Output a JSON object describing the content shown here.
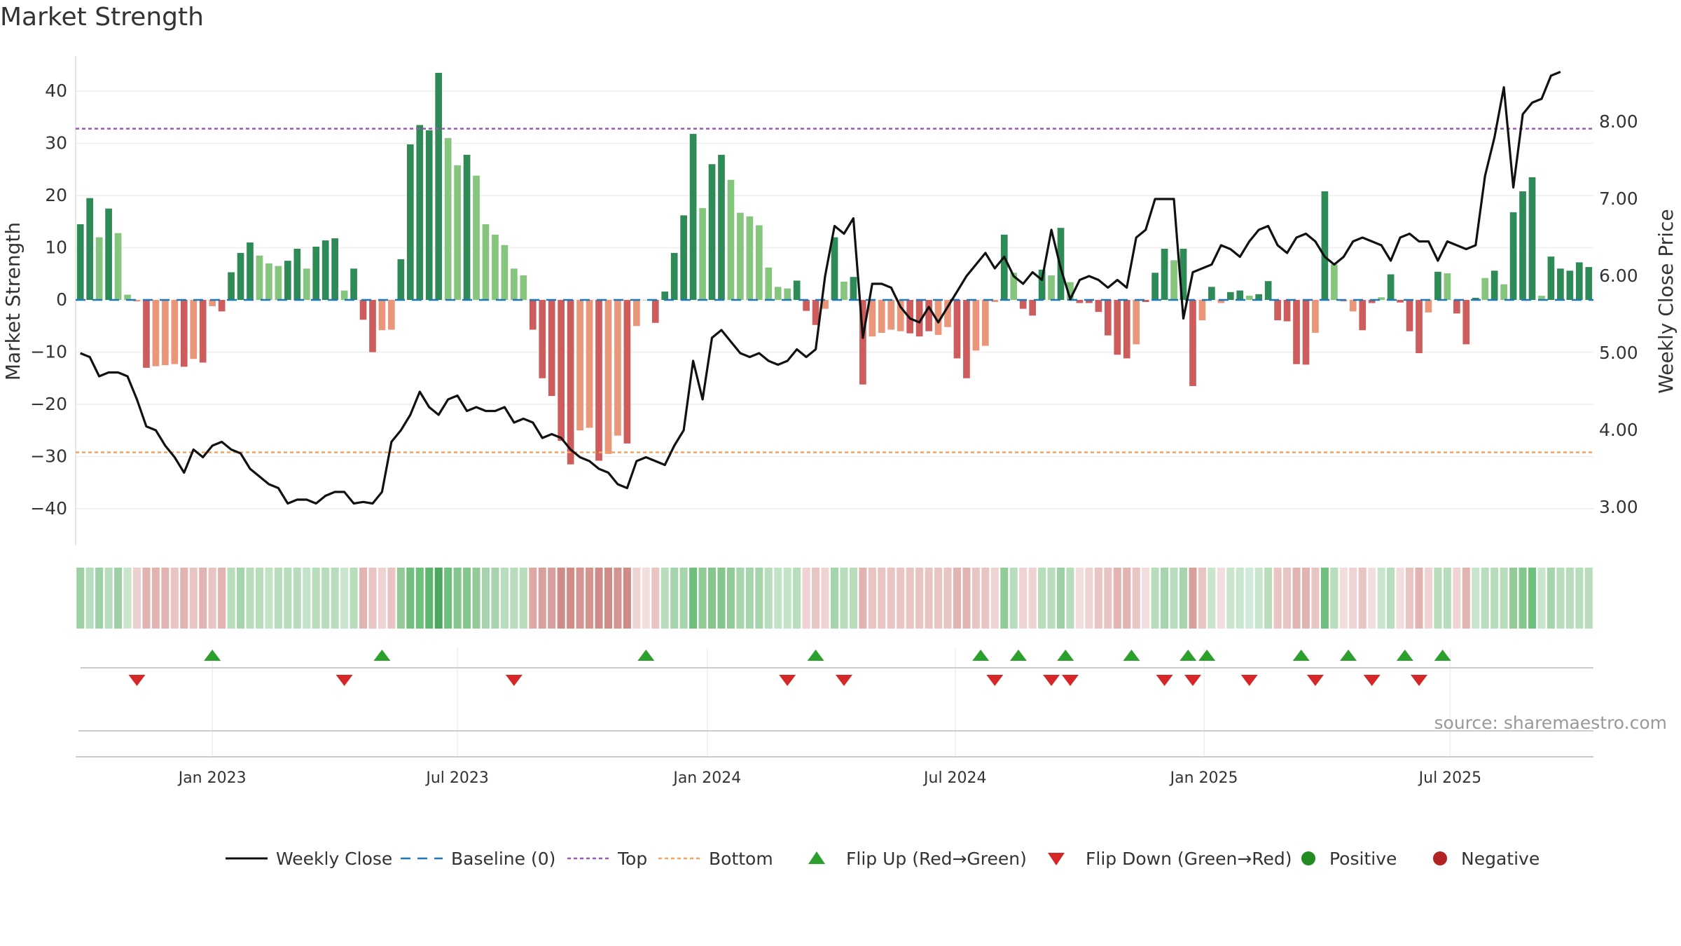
{
  "title": "Market Strength",
  "source": "source: sharemaestro.com",
  "colors": {
    "pos_strong": "#2e8b57",
    "pos_weak": "#86c57d",
    "neg_strong": "#cd5c5c",
    "neg_weak": "#e9967a",
    "close": "#111111",
    "baseline": "#1f77b4",
    "top": "#9b59b6",
    "bottom": "#f4a460",
    "flip_up": "#2ca02c",
    "flip_down": "#d62728",
    "positive": "#228b22",
    "negative": "#b22222"
  },
  "legend": [
    {
      "label": "Weekly Close",
      "kind": "line",
      "color": "#111111"
    },
    {
      "label": "Baseline (0)",
      "kind": "dash",
      "color": "#1f77b4"
    },
    {
      "label": "Top",
      "kind": "dot",
      "color": "#9b59b6"
    },
    {
      "label": "Bottom",
      "kind": "dot",
      "color": "#f4a460"
    },
    {
      "label": "Flip Up (Red→Green)",
      "kind": "tri-up",
      "color": "#2ca02c"
    },
    {
      "label": "Flip Down (Green→Red)",
      "kind": "tri-down",
      "color": "#d62728"
    },
    {
      "label": "Positive",
      "kind": "circle",
      "color": "#228b22"
    },
    {
      "label": "Negative",
      "kind": "circle",
      "color": "#b22222"
    }
  ],
  "chart_data": {
    "type": "bar",
    "title": "Market Strength",
    "ylabel": "Market Strength",
    "y2label": "Weekly Close Price",
    "ylim": [
      -47,
      49
    ],
    "y2lim": [
      2.3,
      9.05
    ],
    "yticks": [
      40,
      30,
      20,
      10,
      0,
      -10,
      -20,
      -30,
      -40
    ],
    "y2ticks": [
      "8.00",
      "7.00",
      "6.00",
      "5.00",
      "4.00",
      "3.00"
    ],
    "xticks": [
      {
        "label": "Jan 2023",
        "week": 14.5
      },
      {
        "label": "Jul 2023",
        "week": 40.5
      },
      {
        "label": "Jan 2024",
        "week": 67
      },
      {
        "label": "Jul 2024",
        "week": 93.3
      },
      {
        "label": "Jan 2025",
        "week": 119.7
      },
      {
        "label": "Jul 2025",
        "week": 145.8
      }
    ],
    "top_level": 32.8,
    "bottom_level": -29.2,
    "strength": [
      14.5,
      19.5,
      12,
      17.5,
      12.8,
      1,
      -0.3,
      -13,
      -12.7,
      -12.5,
      -12.3,
      -12.8,
      -11.3,
      -12,
      -1.2,
      -2.2,
      5.3,
      9,
      11,
      8.5,
      7,
      6.5,
      7.5,
      9.8,
      6,
      10.2,
      11.4,
      11.8,
      1.8,
      6,
      -3.8,
      -10,
      -5.8,
      -5.7,
      7.8,
      29.8,
      33.5,
      32.5,
      43.5,
      31,
      25.8,
      27.8,
      23.8,
      14.5,
      12.5,
      10.5,
      6,
      4.7,
      -5.7,
      -15,
      -18.4,
      -27,
      -31.5,
      -25,
      -24.5,
      -30.8,
      -29.5,
      -26,
      -27.5,
      -5,
      0,
      -4.4,
      1.6,
      9,
      16.2,
      31.8,
      17.6,
      26,
      27.8,
      23,
      16.7,
      16,
      14.3,
      6.2,
      2.5,
      2.2,
      3.7,
      -2.1,
      -4.8,
      -1.7,
      12,
      3.5,
      4.4,
      -16.2,
      -7,
      -6.3,
      -5.7,
      -6,
      -6.4,
      -7,
      -6,
      -6.7,
      -5.2,
      -11.2,
      -15,
      -9.7,
      -8.8,
      -0.4,
      12.5,
      5.2,
      -1.7,
      -3,
      5.8,
      4.7,
      13.8,
      3.4,
      -0.6,
      -0.6,
      -2.3,
      -6.8,
      -10.5,
      -11.2,
      -8.5,
      -0.4,
      5.2,
      9.8,
      7.6,
      9.8,
      -16.5,
      -3.9,
      2.5,
      -0.6,
      1.5,
      1.8,
      0.8,
      1.1,
      3.6,
      -3.9,
      -4.1,
      -12.3,
      -12.4,
      -6.3,
      20.8,
      6.8,
      -0.3,
      -2.2,
      -5.8,
      -0.6,
      0.5,
      4.9,
      -0.5,
      -6,
      -10.2,
      -2.4,
      5.4,
      5.1,
      -2.6,
      -8.5,
      0.4,
      4.2,
      5.6,
      3,
      16.8,
      20.8,
      23.5,
      0.8,
      8.3,
      6,
      5.6,
      7.2,
      6.3
    ],
    "strength_is_strong": [
      1,
      1,
      0,
      1,
      0,
      0,
      0,
      1,
      0,
      0,
      0,
      1,
      0,
      1,
      0,
      1,
      1,
      1,
      1,
      0,
      0,
      0,
      1,
      1,
      0,
      1,
      1,
      1,
      0,
      1,
      1,
      1,
      0,
      0,
      1,
      1,
      1,
      1,
      1,
      0,
      0,
      1,
      0,
      0,
      0,
      0,
      0,
      0,
      1,
      1,
      1,
      1,
      1,
      0,
      0,
      1,
      0,
      0,
      1,
      0,
      0,
      1,
      1,
      1,
      1,
      1,
      0,
      1,
      1,
      0,
      0,
      0,
      0,
      0,
      0,
      0,
      1,
      1,
      1,
      0,
      1,
      0,
      1,
      1,
      0,
      0,
      0,
      0,
      1,
      1,
      1,
      0,
      0,
      1,
      1,
      0,
      0,
      0,
      1,
      0,
      1,
      1,
      1,
      0,
      1,
      0,
      1,
      1,
      1,
      1,
      1,
      1,
      0,
      1,
      1,
      1,
      0,
      1,
      1,
      0,
      1,
      0,
      1,
      1,
      0,
      1,
      1,
      1,
      1,
      1,
      1,
      0,
      1,
      0,
      0,
      0,
      1,
      1,
      0,
      1,
      1,
      1,
      1,
      0,
      1,
      0,
      1,
      1,
      1,
      0,
      1,
      0,
      1,
      1,
      1,
      0,
      1,
      1,
      1,
      1,
      1,
      0,
      1,
      0,
      0,
      0,
      0
    ],
    "weekly_close": [
      5.0,
      4.95,
      4.7,
      4.75,
      4.75,
      4.7,
      4.4,
      4.05,
      4.0,
      3.8,
      3.65,
      3.45,
      3.75,
      3.65,
      3.8,
      3.85,
      3.75,
      3.7,
      3.5,
      3.4,
      3.3,
      3.25,
      3.05,
      3.1,
      3.1,
      3.05,
      3.15,
      3.2,
      3.2,
      3.05,
      3.07,
      3.05,
      3.2,
      3.85,
      4.0,
      4.2,
      4.5,
      4.3,
      4.2,
      4.4,
      4.45,
      4.25,
      4.3,
      4.25,
      4.25,
      4.3,
      4.1,
      4.15,
      4.1,
      3.9,
      3.95,
      3.9,
      3.75,
      3.65,
      3.6,
      3.5,
      3.45,
      3.3,
      3.25,
      3.6,
      3.65,
      3.6,
      3.55,
      3.8,
      4.0,
      4.9,
      4.4,
      5.2,
      5.3,
      5.15,
      5.0,
      4.95,
      5.0,
      4.9,
      4.85,
      4.9,
      5.05,
      4.95,
      5.05,
      6.0,
      6.65,
      6.55,
      6.75,
      5.2,
      5.9,
      5.9,
      5.85,
      5.6,
      5.45,
      5.4,
      5.6,
      5.4,
      5.6,
      5.8,
      6.0,
      6.15,
      6.3,
      6.1,
      6.25,
      6.0,
      5.9,
      6.05,
      5.95,
      6.6,
      6.1,
      5.7,
      5.95,
      6.0,
      5.95,
      5.85,
      5.95,
      5.85,
      6.5,
      6.6,
      7.0,
      7.0,
      7.0,
      5.45,
      6.05,
      6.1,
      6.15,
      6.4,
      6.35,
      6.25,
      6.45,
      6.6,
      6.65,
      6.4,
      6.3,
      6.5,
      6.55,
      6.45,
      6.25,
      6.15,
      6.25,
      6.45,
      6.5,
      6.45,
      6.4,
      6.2,
      6.5,
      6.55,
      6.45,
      6.45,
      6.2,
      6.45,
      6.4,
      6.35,
      6.4,
      7.3,
      7.8,
      8.45,
      7.15,
      8.1,
      8.25,
      8.3,
      8.6,
      8.65
    ],
    "regime_colors": [
      "#9ed0a6",
      "#b7ddbc",
      "#9ed0a6",
      "#b7ddbc",
      "#9ed0a6",
      "#c9e6cd",
      "#ead0cf",
      "#e1b4b2",
      "#e1b4b2",
      "#e1b4b2",
      "#e8c4c2",
      "#e1b4b2",
      "#e8c4c2",
      "#e1b4b2",
      "#e8c4c2",
      "#e1b4b2",
      "#b7ddbc",
      "#a6d4ac",
      "#b7ddbc",
      "#b7ddbc",
      "#c3e3c7",
      "#b7ddbc",
      "#b7ddbc",
      "#b7ddbc",
      "#c3e3c7",
      "#b7ddbc",
      "#b7ddbc",
      "#b7ddbc",
      "#c9e6cd",
      "#b7ddbc",
      "#e1b4b2",
      "#e8c4c2",
      "#efd3d2",
      "#e8c4c2",
      "#93cb98",
      "#6fbf7d",
      "#6fbf7d",
      "#5eb56d",
      "#4ba85e",
      "#6fbf7d",
      "#84c68c",
      "#84c68c",
      "#93cb98",
      "#a6d4ac",
      "#a6d4ac",
      "#b7ddbc",
      "#b7ddbc",
      "#b7ddbc",
      "#dea8a5",
      "#d8a09c",
      "#d8a09c",
      "#cf8b87",
      "#cf8b87",
      "#d49590",
      "#d49590",
      "#cf8b87",
      "#cf8b87",
      "#d49590",
      "#cf8b87",
      "#efd3d2",
      "#f2dedd",
      "#e8c4c2",
      "#b7ddbc",
      "#a6d4ac",
      "#a6d4ac",
      "#6fbf7d",
      "#93cb98",
      "#84c68c",
      "#84c68c",
      "#93cb98",
      "#a6d4ac",
      "#a6d4ac",
      "#a6d4ac",
      "#b7ddbc",
      "#c3e3c7",
      "#c3e3c7",
      "#b7ddbc",
      "#efd3d2",
      "#e8c4c2",
      "#efd3d2",
      "#a6d4ac",
      "#b7ddbc",
      "#b7ddbc",
      "#e1b4b2",
      "#e8c4c2",
      "#e8c4c2",
      "#e8c4c2",
      "#e8c4c2",
      "#e8c4c2",
      "#e8c4c2",
      "#e8c4c2",
      "#e8c4c2",
      "#e8c4c2",
      "#e1b4b2",
      "#e1b4b2",
      "#e8c4c2",
      "#e8c4c2",
      "#efd3d2",
      "#93cb98",
      "#b7ddbc",
      "#efd3d2",
      "#efd3d2",
      "#b7ddbc",
      "#b7ddbc",
      "#9ed0a6",
      "#b7ddbc",
      "#f2dedd",
      "#efd3d2",
      "#e8c4c2",
      "#e8c4c2",
      "#e1b4b2",
      "#e1b4b2",
      "#e8c4c2",
      "#f2dedd",
      "#b7ddbc",
      "#a6d4ac",
      "#b7ddbc",
      "#a6d4ac",
      "#d8a09c",
      "#e8c4c2",
      "#c9e6cd",
      "#f2dedd",
      "#c9e6cd",
      "#c9e6cd",
      "#d2eada",
      "#c9e6cd",
      "#b7ddbc",
      "#e8c4c2",
      "#e8c4c2",
      "#e1b4b2",
      "#e1b4b2",
      "#e8c4c2",
      "#6fbf7d",
      "#b7ddbc",
      "#f2dedd",
      "#efd3d2",
      "#e8c4c2",
      "#f2dedd",
      "#c9e6cd",
      "#b7ddbc",
      "#f2dedd",
      "#e8c4c2",
      "#e1b4b2",
      "#efd3d2",
      "#b7ddbc",
      "#b7ddbc",
      "#efd3d2",
      "#e1b4b2",
      "#c9e6cd",
      "#b7ddbc",
      "#b7ddbc",
      "#b7ddbc",
      "#93cb98",
      "#84c68c",
      "#6fbf7d",
      "#c9e6cd",
      "#a6d4ac",
      "#b7ddbc",
      "#b7ddbc",
      "#b7ddbc",
      "#b7ddbc"
    ],
    "flip_up_weeks": [
      14.5,
      32.5,
      60.5,
      78.5,
      96,
      100,
      105,
      112,
      118,
      120,
      130,
      135,
      141,
      145
    ],
    "flip_down_weeks": [
      6.5,
      28.5,
      46.5,
      75.5,
      81.5,
      97.5,
      103.5,
      105.5,
      115.5,
      118.5,
      124.5,
      131.5,
      137.5,
      142.5
    ]
  }
}
